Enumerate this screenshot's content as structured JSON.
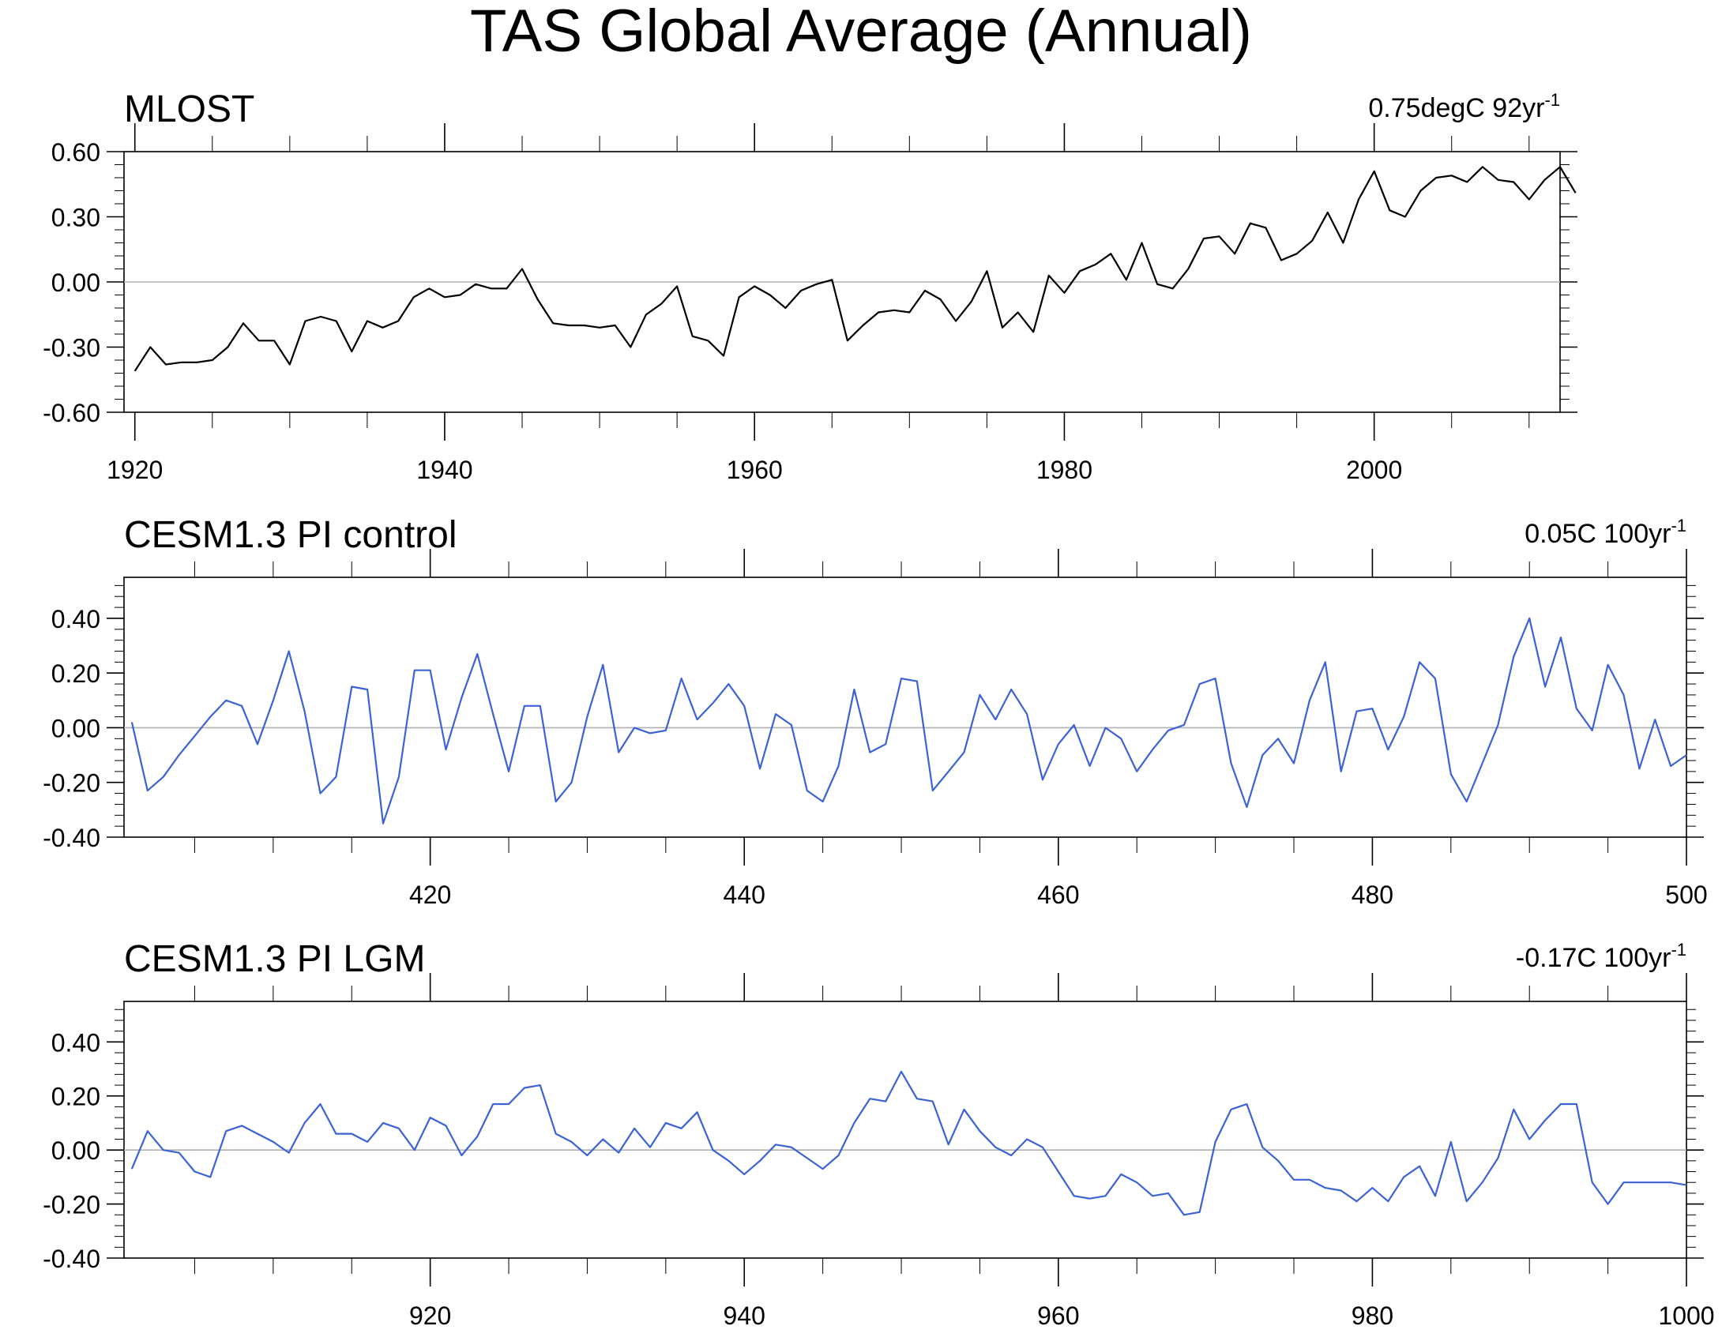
{
  "figure": {
    "title": "TAS Global Average (Annual)"
  },
  "chart_data": [
    {
      "type": "line",
      "title": "MLOST",
      "trend_label": {
        "text": "0.75degC 92yr",
        "superscript": "-1"
      },
      "series": [
        {
          "color": "#000000",
          "x_start": 1920,
          "x_step": 1,
          "values": [
            -0.41,
            -0.3,
            -0.38,
            -0.37,
            -0.37,
            -0.36,
            -0.3,
            -0.19,
            -0.27,
            -0.27,
            -0.38,
            -0.18,
            -0.16,
            -0.18,
            -0.32,
            -0.18,
            -0.21,
            -0.18,
            -0.07,
            -0.03,
            -0.07,
            -0.06,
            -0.01,
            -0.03,
            -0.03,
            0.06,
            -0.08,
            -0.19,
            -0.2,
            -0.2,
            -0.21,
            -0.2,
            -0.3,
            -0.15,
            -0.1,
            -0.02,
            -0.25,
            -0.27,
            -0.34,
            -0.07,
            -0.02,
            -0.06,
            -0.12,
            -0.04,
            -0.01,
            0.01,
            -0.27,
            -0.2,
            -0.14,
            -0.13,
            -0.14,
            -0.04,
            -0.08,
            -0.18,
            -0.09,
            0.05,
            -0.21,
            -0.14,
            -0.23,
            0.03,
            -0.05,
            0.05,
            0.08,
            0.13,
            0.01,
            0.18,
            -0.01,
            -0.03,
            0.06,
            0.2,
            0.21,
            0.13,
            0.27,
            0.25,
            0.1,
            0.13,
            0.19,
            0.32,
            0.18,
            0.38,
            0.51,
            0.33,
            0.3,
            0.42,
            0.48,
            0.49,
            0.46,
            0.53,
            0.47,
            0.46,
            0.38,
            0.47,
            0.53,
            0.41
          ]
        }
      ],
      "xlim": [
        1919.3,
        2012
      ],
      "ylim": [
        -0.6,
        0.6
      ],
      "xticks": [
        1920,
        1940,
        1960,
        1980,
        2000
      ],
      "xtick_labels": [
        "1920",
        "1940",
        "1960",
        "1980",
        "2000"
      ],
      "yticks": [
        0.6,
        0.3,
        0.0,
        -0.3,
        -0.6
      ],
      "ytick_labels": [
        "0.60",
        "0.30",
        "0.00",
        "-0.30",
        "-0.60"
      ],
      "reference_line": 0
    },
    {
      "type": "line",
      "title": "CESM1.3 PI control",
      "trend_label": {
        "text": "0.05C 100yr",
        "superscript": "-1"
      },
      "series": [
        {
          "color": "#3b62d6",
          "x_start": 401,
          "x_step": 1,
          "values": [
            0.02,
            -0.23,
            -0.18,
            -0.1,
            -0.03,
            0.04,
            0.1,
            0.08,
            -0.06,
            0.1,
            0.28,
            0.06,
            -0.24,
            -0.18,
            0.15,
            0.14,
            -0.35,
            -0.18,
            0.21,
            0.21,
            -0.08,
            0.11,
            0.27,
            0.05,
            -0.16,
            0.08,
            0.08,
            -0.27,
            -0.2,
            0.04,
            0.23,
            -0.09,
            0.0,
            -0.02,
            -0.01,
            0.18,
            0.03,
            0.09,
            0.16,
            0.08,
            -0.15,
            0.05,
            0.01,
            -0.23,
            -0.27,
            -0.14,
            0.14,
            -0.09,
            -0.06,
            0.18,
            0.17,
            -0.23,
            -0.16,
            -0.09,
            0.12,
            0.03,
            0.14,
            0.05,
            -0.19,
            -0.06,
            0.01,
            -0.14,
            0.0,
            -0.04,
            -0.16,
            -0.08,
            -0.01,
            0.01,
            0.16,
            0.18,
            -0.13,
            -0.29,
            -0.1,
            -0.04,
            -0.13,
            0.1,
            0.24,
            -0.16,
            0.06,
            0.07,
            -0.08,
            0.04,
            0.24,
            0.18,
            -0.17,
            -0.27,
            -0.13,
            0.01,
            0.26,
            0.4,
            0.15,
            0.33,
            0.07,
            -0.01,
            0.23,
            0.12,
            -0.15,
            0.03,
            -0.14,
            -0.1
          ]
        }
      ],
      "xlim": [
        400.5,
        500
      ],
      "ylim": [
        -0.4,
        0.55
      ],
      "xticks": [
        420,
        440,
        460,
        480,
        500
      ],
      "xtick_labels": [
        "420",
        "440",
        "460",
        "480",
        "500"
      ],
      "yticks": [
        0.4,
        0.2,
        0.0,
        -0.2,
        -0.4
      ],
      "ytick_labels": [
        "0.40",
        "0.20",
        "0.00",
        "-0.20",
        "-0.40"
      ],
      "reference_line": 0
    },
    {
      "type": "line",
      "title": "CESM1.3 PI LGM",
      "trend_label": {
        "text": "-0.17C 100yr",
        "superscript": "-1"
      },
      "series": [
        {
          "color": "#3b62d6",
          "x_start": 901,
          "x_step": 1,
          "values": [
            -0.07,
            0.07,
            0.0,
            -0.01,
            -0.08,
            -0.1,
            0.07,
            0.09,
            0.06,
            0.03,
            -0.01,
            0.1,
            0.17,
            0.06,
            0.06,
            0.03,
            0.1,
            0.08,
            0.0,
            0.12,
            0.09,
            -0.02,
            0.05,
            0.17,
            0.17,
            0.23,
            0.24,
            0.06,
            0.03,
            -0.02,
            0.04,
            -0.01,
            0.08,
            0.01,
            0.1,
            0.08,
            0.14,
            0.0,
            -0.04,
            -0.09,
            -0.04,
            0.02,
            0.01,
            -0.03,
            -0.07,
            -0.02,
            0.1,
            0.19,
            0.18,
            0.29,
            0.19,
            0.18,
            0.02,
            0.15,
            0.07,
            0.01,
            -0.02,
            0.04,
            0.01,
            -0.08,
            -0.17,
            -0.18,
            -0.17,
            -0.09,
            -0.12,
            -0.17,
            -0.16,
            -0.24,
            -0.23,
            0.03,
            0.15,
            0.17,
            0.01,
            -0.04,
            -0.11,
            -0.11,
            -0.14,
            -0.15,
            -0.19,
            -0.14,
            -0.19,
            -0.1,
            -0.06,
            -0.17,
            0.03,
            -0.19,
            -0.12,
            -0.03,
            0.15,
            0.04,
            0.11,
            0.17,
            0.17,
            -0.12,
            -0.2,
            -0.12,
            -0.12,
            -0.12,
            -0.12,
            -0.13
          ]
        }
      ],
      "xlim": [
        900.5,
        1000
      ],
      "ylim": [
        -0.4,
        0.55
      ],
      "xticks": [
        920,
        940,
        960,
        980,
        1000
      ],
      "xtick_labels": [
        "920",
        "940",
        "960",
        "980",
        "1000"
      ],
      "yticks": [
        0.4,
        0.2,
        0.0,
        -0.2,
        -0.4
      ],
      "ytick_labels": [
        "0.40",
        "0.20",
        "0.00",
        "-0.20",
        "-0.40"
      ],
      "reference_line": 0
    }
  ]
}
